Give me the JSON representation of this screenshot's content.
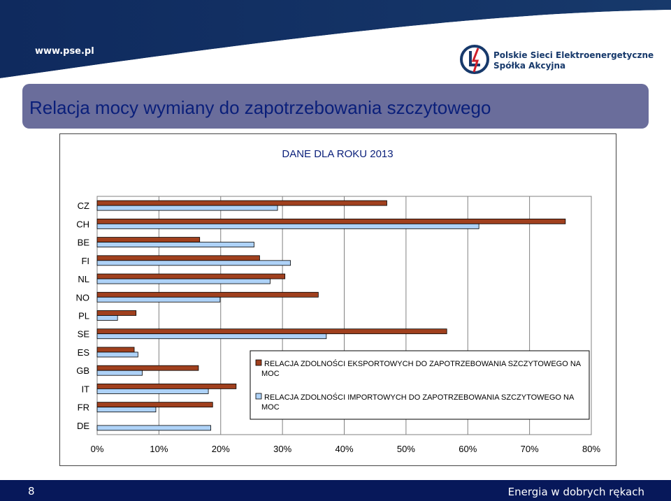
{
  "header": {
    "url": "www.pse.pl",
    "company_line1": "Polskie Sieci Elektroenergetyczne",
    "company_line2": "Spółka Akcyjna"
  },
  "slide": {
    "title": "Relacja mocy wymiany do zapotrzebowania szczytowego",
    "page_number": "8",
    "slogan": "Energia w dobrych rękach"
  },
  "colors": {
    "export": "#a0401e",
    "import": "#aed2f7",
    "title_bar": "#6a6d9b",
    "title_text": "#0a1f7a",
    "footer": "#07185a",
    "header_gradient_left": "#0f2a5e",
    "header_gradient_right": "#17396b"
  },
  "chart_data": {
    "type": "bar",
    "orientation": "horizontal",
    "title": "DANE DLA ROKU 2013",
    "categories": [
      "CZ",
      "CH",
      "BE",
      "FI",
      "NL",
      "NO",
      "PL",
      "SE",
      "ES",
      "GB",
      "IT",
      "FR",
      "DE"
    ],
    "series": [
      {
        "name": "RELACJA ZDOLNOŚCI EKSPORTOWYCH DO ZAPOTRZEBOWANIA SZCZYTOWEGO NA MOC",
        "values": [
          46.9,
          75.8,
          16.6,
          26.3,
          30.4,
          35.8,
          6.3,
          56.6,
          6.0,
          16.4,
          22.5,
          18.7,
          null
        ]
      },
      {
        "name": "RELACJA ZDOLNOŚCI IMPORTOWYCH DO ZAPOTRZEBOWANIA SZCZYTOWEGO NA MOC",
        "values": [
          29.2,
          61.8,
          25.4,
          31.3,
          28.0,
          19.9,
          3.3,
          37.1,
          6.6,
          7.3,
          18.0,
          9.5,
          18.4
        ]
      }
    ],
    "xlim": [
      0,
      80
    ],
    "x_ticks": [
      "0%",
      "10%",
      "20%",
      "30%",
      "40%",
      "50%",
      "60%",
      "70%",
      "80%"
    ],
    "grid": "vertical",
    "legend_position": "bottom-right"
  }
}
